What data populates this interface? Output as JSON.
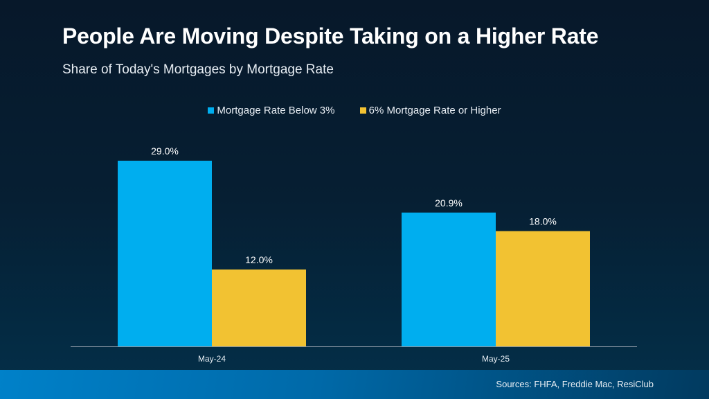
{
  "chart_data": {
    "type": "bar",
    "title": "People Are Moving Despite Taking on a Higher Rate",
    "subtitle": "Share of Today's Mortgages by Mortgage Rate",
    "categories": [
      "May-24",
      "May-25"
    ],
    "series": [
      {
        "name": "Mortgage Rate Below 3%",
        "values": [
          29.0,
          20.9
        ],
        "labels": [
          "29.0%",
          "20.9%"
        ],
        "color": "#00aeef"
      },
      {
        "name": "6% Mortgage Rate or Higher",
        "values": [
          12.0,
          18.0
        ],
        "labels": [
          "12.0%",
          "18.0%"
        ],
        "color": "#f2c232"
      }
    ],
    "ylim": [
      0,
      29
    ],
    "grid": false,
    "legend": "top-center",
    "xlabel": "",
    "ylabel": ""
  },
  "footer": {
    "source": "Sources: FHFA, Freddie Mac, ResiClub"
  }
}
